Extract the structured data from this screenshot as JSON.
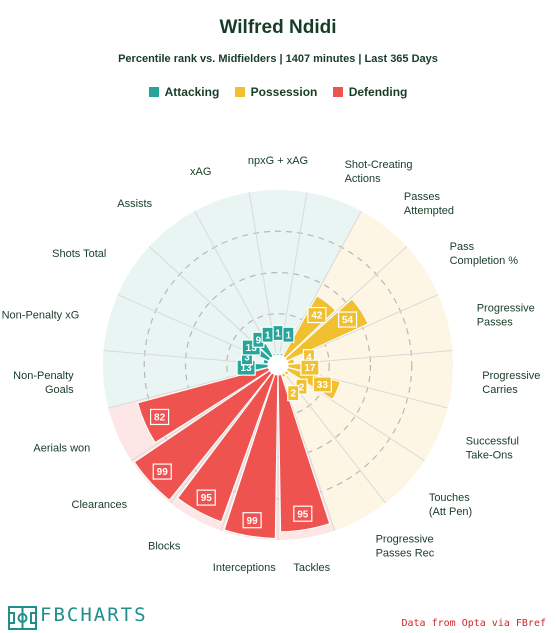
{
  "chart_data": {
    "type": "radar",
    "title": "Wilfred Ndidi",
    "subtitle": "Percentile rank vs. Midfielders | 1407 minutes | Last 365 Days",
    "legend": [
      {
        "name": "Attacking",
        "color": "#26a69a"
      },
      {
        "name": "Possession",
        "color": "#f0c030"
      },
      {
        "name": "Defending",
        "color": "#ef5350"
      }
    ],
    "scale": [
      0,
      100
    ],
    "grid_rings": [
      25,
      50,
      75
    ],
    "categories": [
      "npxG + xAG",
      "Shot-Creating Actions",
      "Passes Attempted",
      "Pass Completion %",
      "Progressive Passes",
      "Progressive Carries",
      "Successful Take-Ons",
      "Touches (Att Pen)",
      "Progressive Passes Rec",
      "Tackles",
      "Interceptions",
      "Blocks",
      "Clearances",
      "Aerials won",
      "Non-Penalty Goals",
      "Non-Penalty xG",
      "Shots Total",
      "Assists",
      "xAG"
    ],
    "groups": [
      "Attacking",
      "Attacking",
      "Possession",
      "Possession",
      "Possession",
      "Possession",
      "Possession",
      "Possession",
      "Possession",
      "Defending",
      "Defending",
      "Defending",
      "Defending",
      "Defending",
      "Attacking",
      "Attacking",
      "Attacking",
      "Attacking",
      "Attacking"
    ],
    "values": [
      1,
      1,
      42,
      54,
      4,
      17,
      33,
      2,
      2,
      95,
      99,
      95,
      99,
      82,
      13,
      3,
      13,
      9,
      1
    ]
  },
  "branding": {
    "logo_text": "FBCHARTS",
    "source": "Data from Opta via FBref"
  }
}
